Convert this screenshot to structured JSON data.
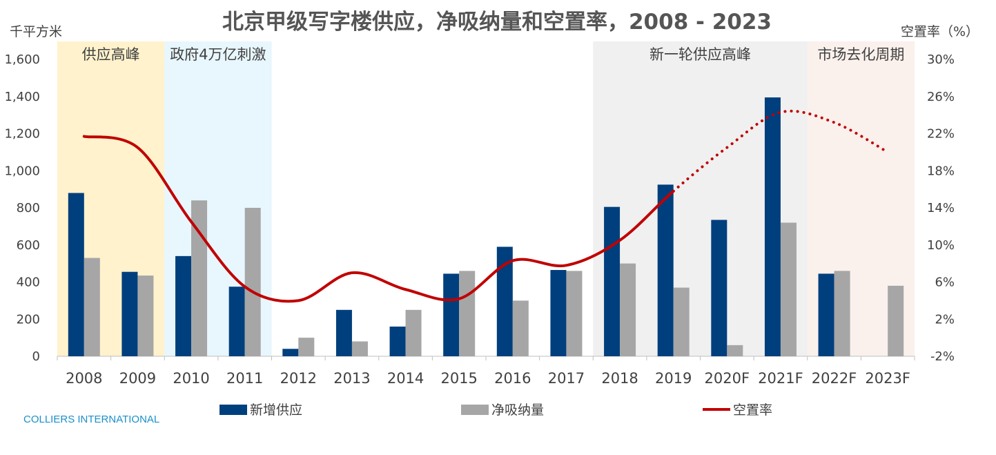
{
  "chart_data": {
    "type": "bar",
    "title": "北京甲级写字楼供应，净吸纳量和空置率，2008 - 2023",
    "ylabel": "千平方米",
    "y2label": "空置率（%）",
    "categories": [
      "2008",
      "2009",
      "2010",
      "2011",
      "2012",
      "2013",
      "2014",
      "2015",
      "2016",
      "2017",
      "2018",
      "2019",
      "2020F",
      "2021F",
      "2022F",
      "2023F"
    ],
    "ylim": [
      0,
      1600
    ],
    "yticks": [
      "0",
      "200",
      "400",
      "600",
      "800",
      "1,000",
      "1,200",
      "1,400",
      "1,600"
    ],
    "y2lim": [
      -2,
      30
    ],
    "y2ticks": [
      "-2%",
      "2%",
      "6%",
      "10%",
      "14%",
      "18%",
      "22%",
      "26%",
      "30%"
    ],
    "series": [
      {
        "name": "新增供应",
        "type": "bar",
        "color": "#003f7d",
        "values": [
          880,
          455,
          540,
          375,
          40,
          250,
          160,
          445,
          590,
          465,
          805,
          925,
          735,
          1395,
          445,
          0
        ]
      },
      {
        "name": "净吸纳量",
        "type": "bar",
        "color": "#a6a6a6",
        "values": [
          530,
          435,
          840,
          800,
          100,
          80,
          250,
          460,
          300,
          460,
          500,
          370,
          60,
          720,
          460,
          380
        ]
      },
      {
        "name": "空置率",
        "type": "line",
        "axis": "right",
        "color": "#c00000",
        "values": [
          21.7,
          20.5,
          12.5,
          5.5,
          4.0,
          7.0,
          5.2,
          4.2,
          8.3,
          7.8,
          10.5,
          15.8,
          20.5,
          24.3,
          23.2,
          20.0
        ],
        "dotted_from_index": 11
      }
    ],
    "bands": [
      {
        "label": "供应高峰",
        "from": 0,
        "to": 1,
        "color": "#fff2cc"
      },
      {
        "label": "政府4万亿刺激",
        "from": 2,
        "to": 3,
        "color": "#e8f6fd"
      },
      {
        "label": "新一轮供应高峰",
        "from": 10,
        "to": 13,
        "color": "#f0f0f0"
      },
      {
        "label": "市场去化周期",
        "from": 14,
        "to": 15,
        "color": "#faf0ec"
      }
    ],
    "legend": [
      "新增供应",
      "净吸纳量",
      "空置率"
    ],
    "legend_position": "bottom",
    "source": "COLLIERS INTERNATIONAL"
  }
}
